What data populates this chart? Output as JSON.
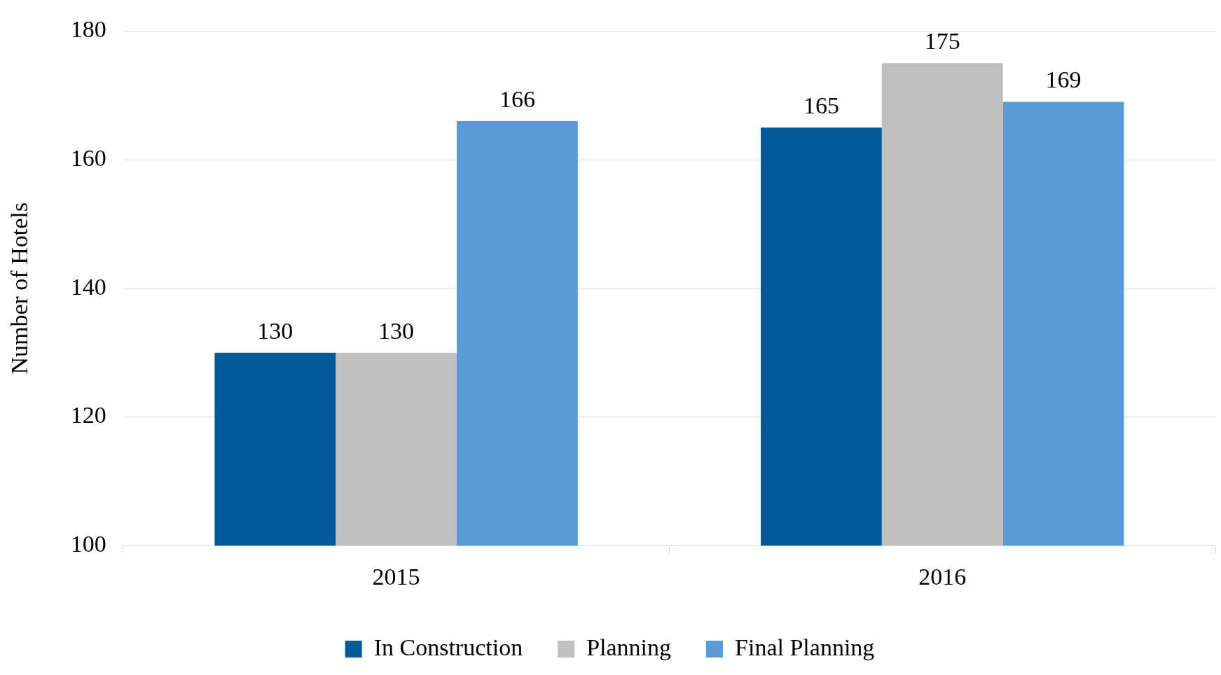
{
  "chart_data": {
    "type": "bar",
    "ylabel": "Number of Hotels",
    "categories": [
      "2015",
      "2016"
    ],
    "series": [
      {
        "name": "In Construction",
        "color": "#005a9c",
        "values": [
          130,
          165
        ]
      },
      {
        "name": "Planning",
        "color": "#bfbfbf",
        "values": [
          130,
          175
        ]
      },
      {
        "name": "Final Planning",
        "color": "#5b9bd5",
        "values": [
          166,
          169
        ]
      }
    ],
    "ylim": [
      100,
      180
    ],
    "yticks": [
      100,
      120,
      140,
      160,
      180
    ],
    "grid": "y",
    "legend": "bottom",
    "data_labels": true
  }
}
